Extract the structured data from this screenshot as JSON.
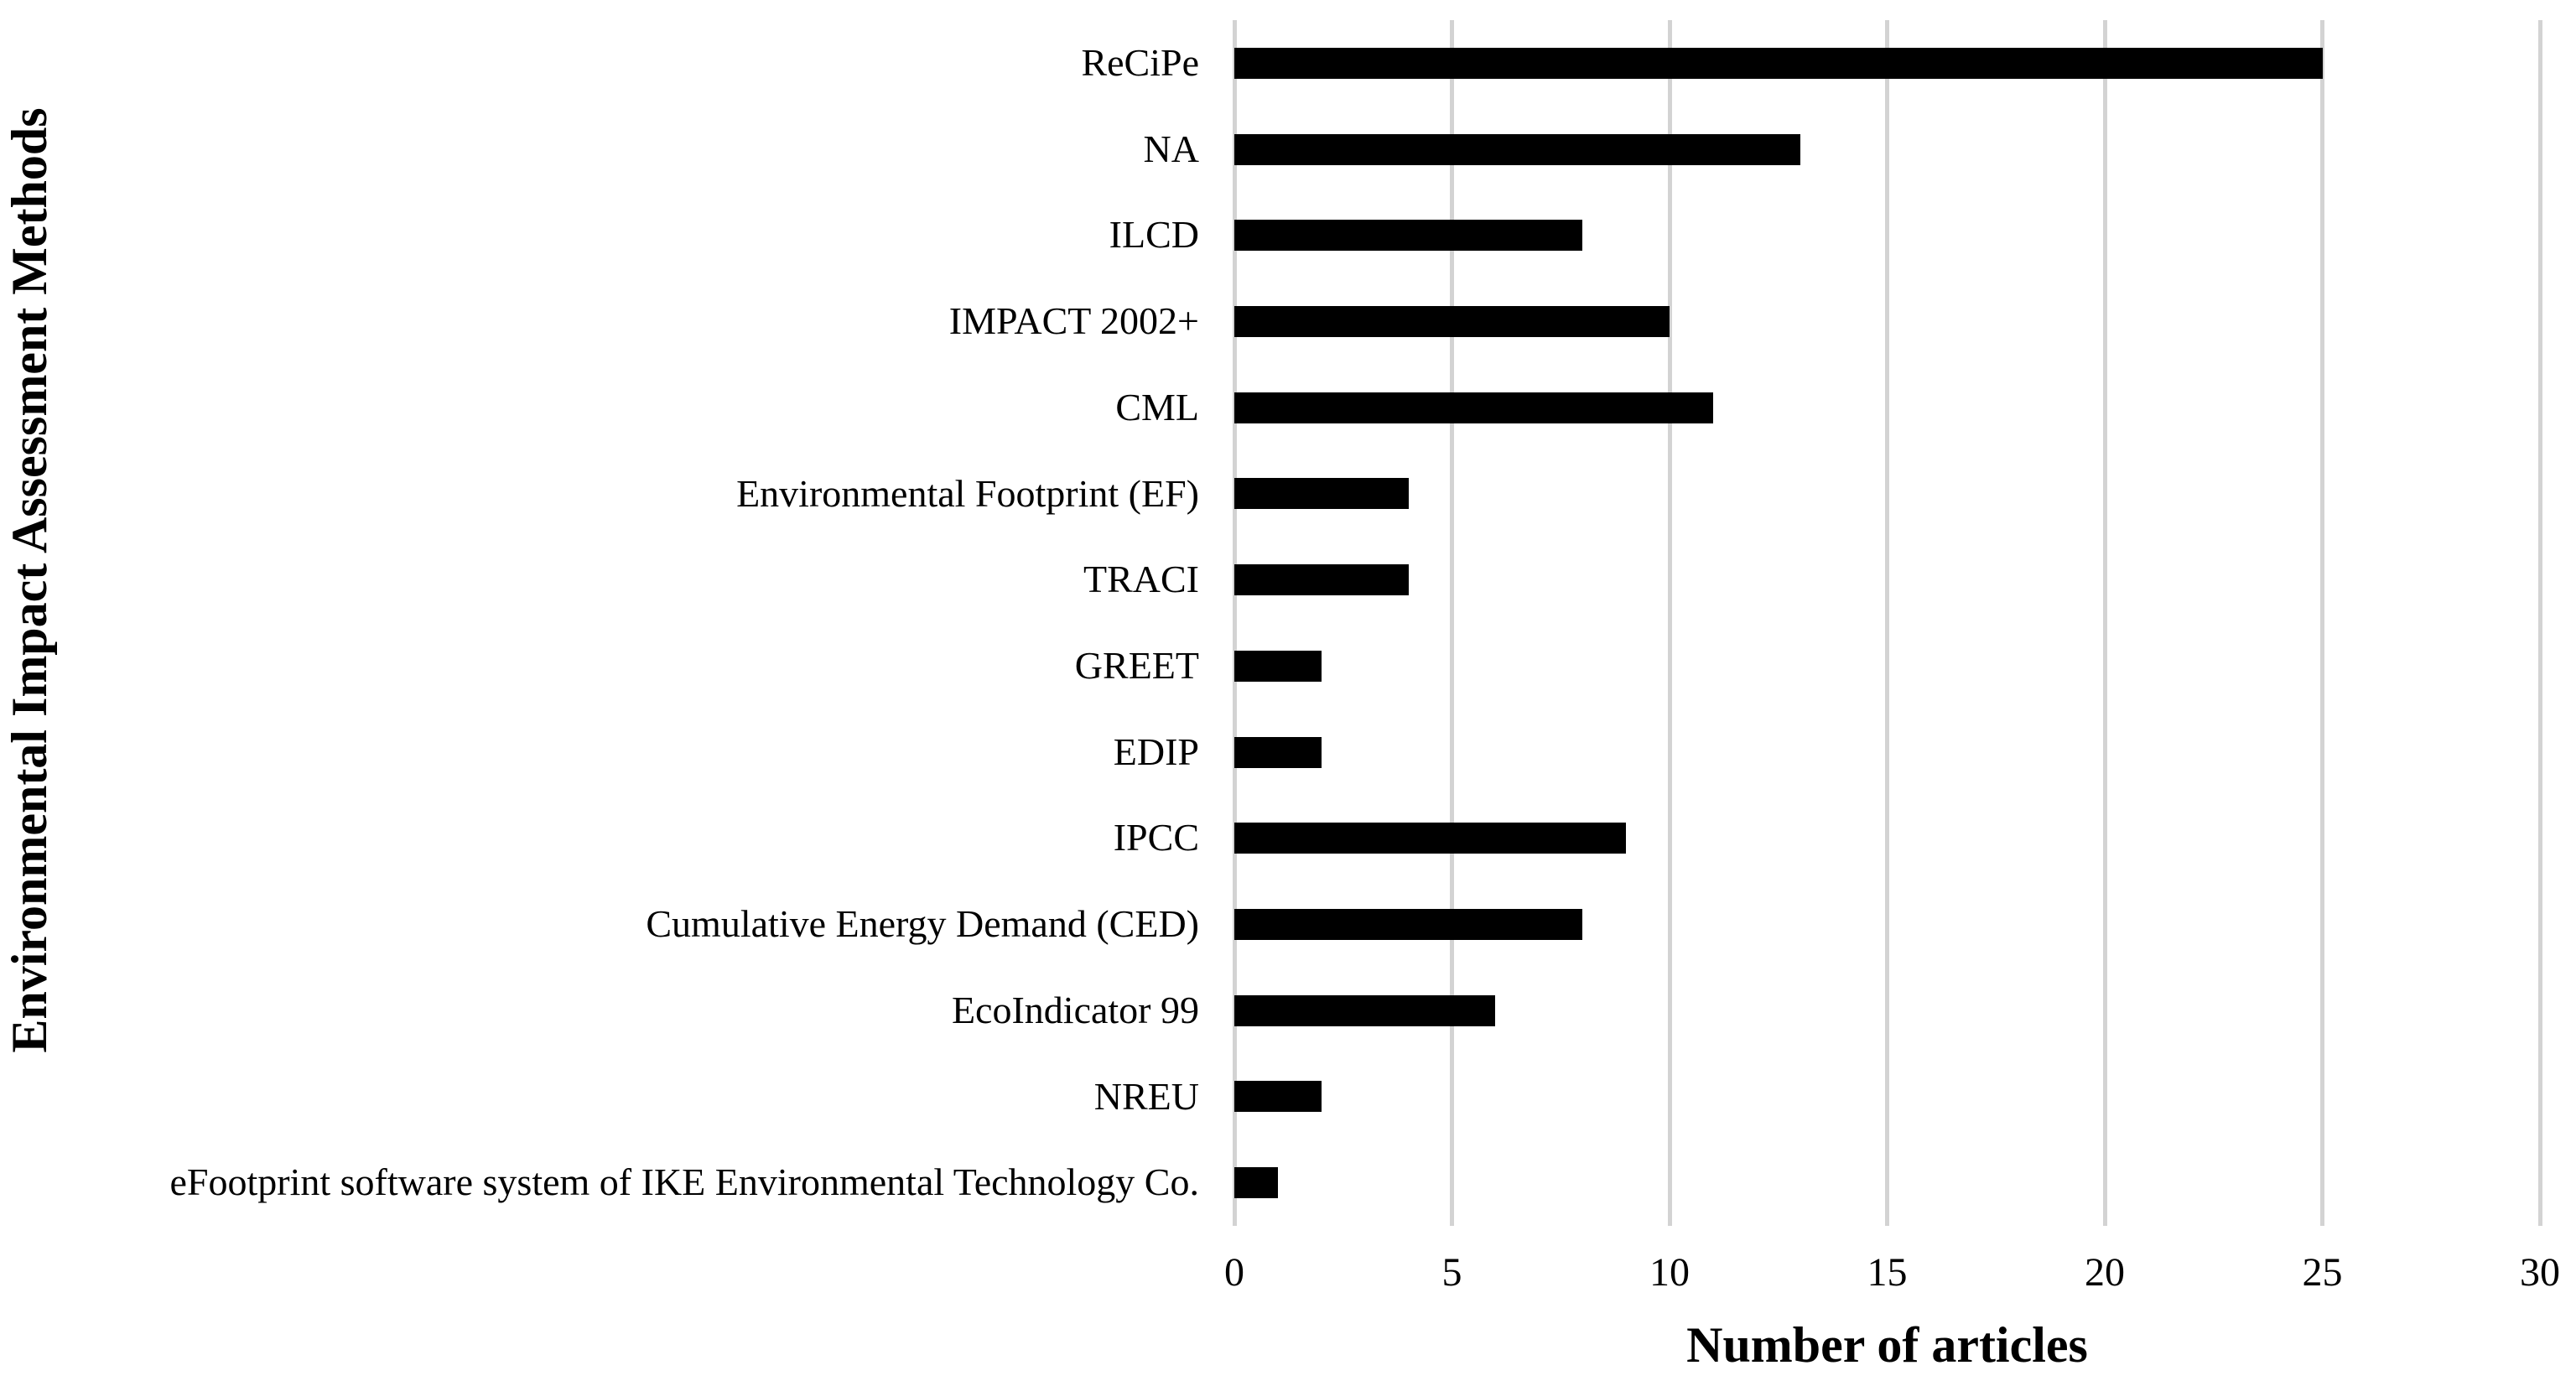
{
  "figure": {
    "x_axis_title": "Number of articles",
    "y_axis_title": "Environmental Impact Assessment Methods"
  },
  "chart_data": {
    "type": "bar",
    "orientation": "horizontal",
    "title": "",
    "xlabel": "Number of articles",
    "ylabel": "Environmental Impact Assessment Methods",
    "categories": [
      "ReCiPe",
      "NA",
      "ILCD",
      "IMPACT 2002+",
      "CML",
      "Environmental Footprint (EF)",
      "TRACI",
      "GREET",
      "EDIP",
      "IPCC",
      "Cumulative Energy Demand (CED)",
      "EcoIndicator 99",
      "NREU",
      "eFootprint software system of IKE Environmental Technology Co."
    ],
    "values": [
      25,
      13,
      8,
      10,
      11,
      4,
      4,
      2,
      2,
      9,
      8,
      6,
      2,
      1
    ],
    "xlim": [
      0,
      30
    ],
    "xticks": [
      0,
      5,
      10,
      15,
      20,
      25,
      30
    ],
    "grid": "vertical-gridlines-on",
    "legend": "none",
    "bar_color": "#000000",
    "gridline_color": "#d3d3d3",
    "background_color": "#ffffff",
    "text_color": "#000000"
  }
}
